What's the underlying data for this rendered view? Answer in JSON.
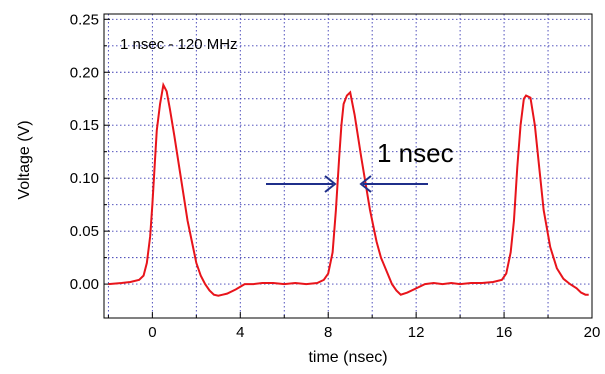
{
  "chart_data": {
    "type": "line",
    "xlabel": "time (nsec)",
    "ylabel": "Voltage (V)",
    "xlim": [
      -2.2,
      20
    ],
    "ylim": [
      -0.032,
      0.255
    ],
    "x_ticks": [
      0,
      4,
      8,
      12,
      16,
      20
    ],
    "x_tick_labels": [
      "0",
      "4",
      "8",
      "12",
      "16",
      "20"
    ],
    "y_ticks": [
      0.0,
      0.05,
      0.1,
      0.15,
      0.2,
      0.25
    ],
    "y_tick_labels": [
      "0.00",
      "0.05",
      "0.10",
      "0.15",
      "0.20",
      "0.25"
    ],
    "grid": true,
    "annotation_text": "1 nsec - 120 MHz",
    "pulse_width_label": "1 nsec",
    "colors": {
      "line": "#e8141b",
      "grid": "#3c3cb4",
      "arrow": "#1f2f8a",
      "pulse_label": "#1f2f8a"
    },
    "series": [
      {
        "x": [
          -2.0,
          -1.4,
          -1.0,
          -0.6,
          -0.4,
          -0.25,
          -0.1,
          0.0,
          0.1,
          0.2,
          0.35,
          0.5,
          0.65,
          0.8,
          1.0,
          1.3,
          1.6,
          1.8,
          2.0,
          2.2,
          2.4,
          2.6,
          2.8,
          3.0,
          3.2,
          3.4,
          3.8,
          4.2,
          4.6,
          5.0,
          5.5,
          6.0,
          6.5,
          7.0,
          7.5,
          7.8,
          8.0,
          8.2,
          8.35,
          8.5,
          8.6,
          8.7,
          8.85,
          9.0,
          9.2,
          9.5,
          9.9,
          10.2,
          10.4,
          10.7,
          10.9,
          11.1,
          11.3,
          11.6,
          12.0,
          12.4,
          12.8,
          13.2,
          13.6,
          14.0,
          14.5,
          15.0,
          15.5,
          15.9,
          16.1,
          16.3,
          16.45,
          16.6,
          16.75,
          16.9,
          17.0,
          17.2,
          17.4,
          17.6,
          17.8,
          18.1,
          18.4,
          18.7,
          19.0,
          19.3,
          19.5,
          19.7,
          19.85
        ],
        "y": [
          0.0,
          0.001,
          0.002,
          0.004,
          0.008,
          0.02,
          0.045,
          0.075,
          0.11,
          0.145,
          0.17,
          0.188,
          0.182,
          0.165,
          0.14,
          0.1,
          0.06,
          0.04,
          0.02,
          0.008,
          0.0,
          -0.006,
          -0.01,
          -0.011,
          -0.01,
          -0.009,
          -0.005,
          0.0,
          0.0,
          0.001,
          0.001,
          0.0,
          0.001,
          0.0,
          0.001,
          0.004,
          0.01,
          0.03,
          0.07,
          0.12,
          0.15,
          0.17,
          0.178,
          0.181,
          0.16,
          0.12,
          0.07,
          0.04,
          0.025,
          0.01,
          0.0,
          -0.006,
          -0.01,
          -0.008,
          -0.004,
          0.0,
          0.001,
          0.0,
          0.001,
          0.0,
          0.001,
          0.001,
          0.002,
          0.004,
          0.01,
          0.03,
          0.06,
          0.11,
          0.15,
          0.175,
          0.178,
          0.176,
          0.15,
          0.11,
          0.07,
          0.035,
          0.015,
          0.005,
          0.0,
          -0.004,
          -0.008,
          -0.01,
          -0.01
        ]
      }
    ]
  }
}
